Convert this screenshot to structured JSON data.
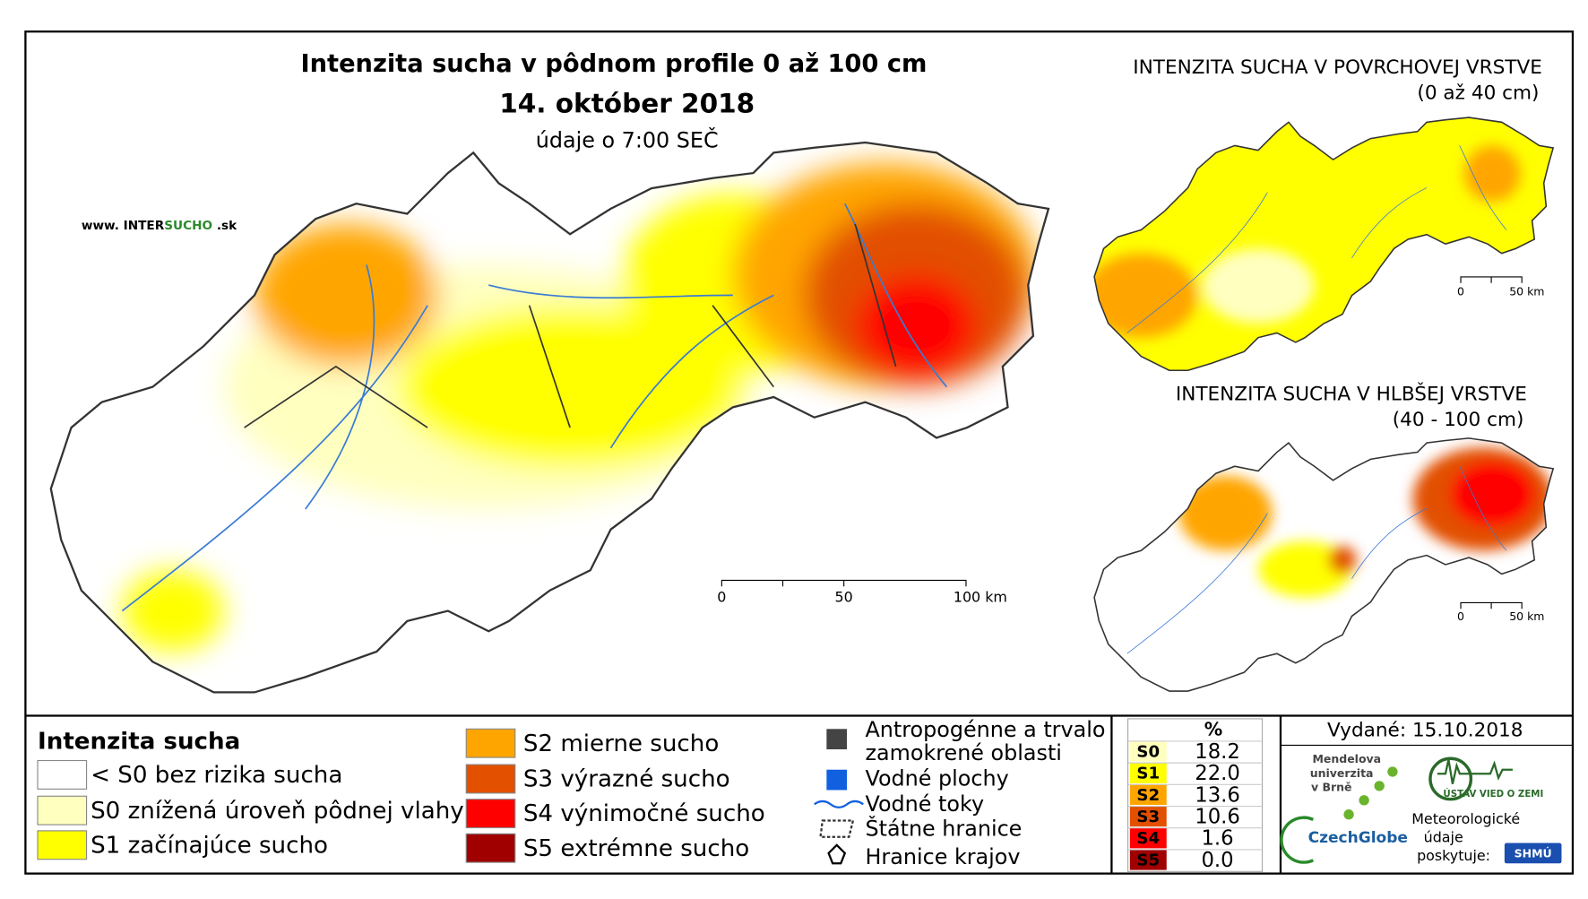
{
  "main_map": {
    "title": "Intenzita sucha v pôdnom profile 0 až 100 cm",
    "date": "14. október 2018",
    "time": "údaje o 7:00 SEČ",
    "website": [
      "www. INTER",
      "SUCHO",
      " .sk"
    ],
    "scale": [
      "0",
      "50",
      "100 km"
    ]
  },
  "surface_map": {
    "title": "INTENZITA SUCHA V POVRCHOVEJ VRSTVE",
    "subtitle": "(0 až 40 cm)",
    "scale": [
      "0",
      "50 km"
    ]
  },
  "deep_map": {
    "title": "INTENZITA SUCHA V HLBŠEJ VRSTVE",
    "subtitle": "(40 - 100 cm)",
    "scale": [
      "0",
      "50 km"
    ]
  },
  "legend": {
    "title": "Intenzita sucha",
    "items": [
      {
        "label": "< S0 bez rizika sucha",
        "color": "#ffffff"
      },
      {
        "label": "S0 znížená úroveň pôdnej vlahy",
        "color": "#ffffc0"
      },
      {
        "label": "S1 začínajúce sucho",
        "color": "#ffff00"
      },
      {
        "label": "S2 mierne sucho",
        "color": "#ffa500"
      },
      {
        "label": "S3 výrazné sucho",
        "color": "#e25000"
      },
      {
        "label": "S4 výnimočné sucho",
        "color": "#ff0000"
      },
      {
        "label": "S5 extrémne sucho",
        "color": "#a00000"
      }
    ],
    "symbols": [
      "Antropogénne a trvalo",
      "zamokrené oblasti",
      "Vodné plochy",
      "Vodné toky",
      "Štátne hranice",
      "Hranice krajov"
    ]
  },
  "stats": {
    "header": "%",
    "classes": [
      "S0",
      "S1",
      "S2",
      "S3",
      "S4",
      "S5"
    ],
    "values": [
      18.2,
      22.0,
      13.6,
      10.6,
      1.6,
      0.0
    ],
    "value_labels": [
      "18.2",
      "22.0",
      "13.6",
      "10.6",
      "1.6",
      "0.0"
    ]
  },
  "footer": {
    "issued": "Vydané: 15.10.2018",
    "mendel": [
      "Mendelova",
      "univerzita",
      "v Brně"
    ],
    "czechglobe": "CzechGlobe",
    "institute": "ÚSTAV VIED O ZEMI",
    "provider": [
      "Meteorologické",
      "údaje",
      "poskytuje:"
    ],
    "shmu": "SHMÚ"
  }
}
